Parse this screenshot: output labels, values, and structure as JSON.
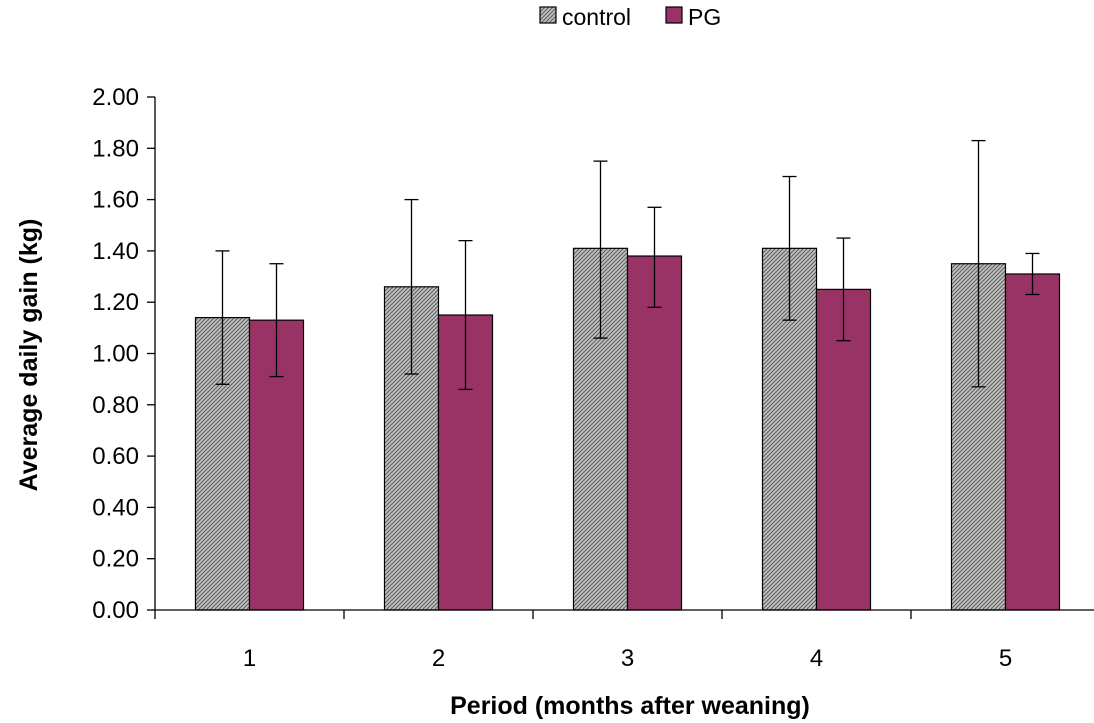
{
  "chart_data": {
    "type": "bar",
    "title": "",
    "xlabel": "Period (months after weaning)",
    "ylabel": "Average daily gain (kg)",
    "ylim": [
      0,
      2
    ],
    "yticks": [
      "0.00",
      "0.20",
      "0.40",
      "0.60",
      "0.80",
      "1.00",
      "1.20",
      "1.40",
      "1.60",
      "1.80",
      "2.00"
    ],
    "categories": [
      "1",
      "2",
      "3",
      "4",
      "5"
    ],
    "grid": false,
    "legend_position": "top-center",
    "series": [
      {
        "name": "control",
        "values": [
          1.14,
          1.26,
          1.41,
          1.41,
          1.35
        ],
        "error_upper": [
          1.4,
          1.6,
          1.75,
          1.69,
          1.83
        ],
        "error_lower": [
          0.88,
          0.92,
          1.06,
          1.13,
          0.87
        ],
        "color": "#a6a6a6",
        "pattern": "crosshatch"
      },
      {
        "name": "PG",
        "values": [
          1.13,
          1.15,
          1.38,
          1.25,
          1.31
        ],
        "error_upper": [
          1.35,
          1.44,
          1.57,
          1.45,
          1.39
        ],
        "error_lower": [
          0.91,
          0.86,
          1.18,
          1.05,
          1.23
        ],
        "color": "#993366",
        "pattern": "solid"
      }
    ]
  }
}
